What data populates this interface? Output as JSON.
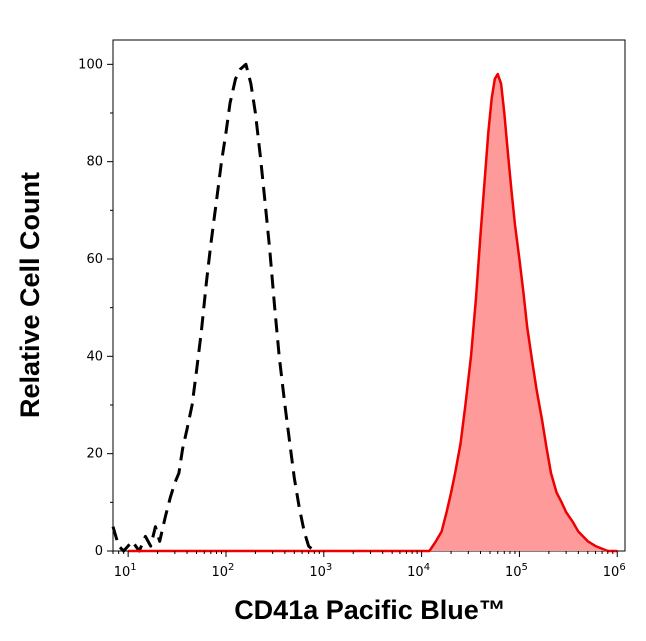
{
  "chart_data": {
    "type": "area",
    "xlabel": "CD41a Pacific Blue™",
    "ylabel": "Relative Cell Count",
    "x_scale": "log",
    "xlim": [
      7,
      1200000
    ],
    "ylim": [
      0,
      105
    ],
    "x_ticks": [
      {
        "value": 10,
        "base": "10",
        "exp": "1"
      },
      {
        "value": 100,
        "base": "10",
        "exp": "2"
      },
      {
        "value": 1000,
        "base": "10",
        "exp": "3"
      },
      {
        "value": 10000,
        "base": "10",
        "exp": "4"
      },
      {
        "value": 100000,
        "base": "10",
        "exp": "5"
      },
      {
        "value": 1000000,
        "base": "10",
        "exp": "6"
      }
    ],
    "y_ticks": [
      0,
      20,
      40,
      60,
      80,
      100
    ],
    "grid": false,
    "series": [
      {
        "style": "dashed",
        "color": "#000000",
        "points": [
          [
            7,
            5
          ],
          [
            8,
            1
          ],
          [
            9,
            0
          ],
          [
            11,
            2
          ],
          [
            13,
            0
          ],
          [
            15,
            3
          ],
          [
            17,
            1
          ],
          [
            19,
            5
          ],
          [
            21,
            2
          ],
          [
            24,
            7
          ],
          [
            27,
            11
          ],
          [
            30,
            14
          ],
          [
            33,
            16
          ],
          [
            36,
            21
          ],
          [
            40,
            25
          ],
          [
            45,
            30
          ],
          [
            50,
            37
          ],
          [
            56,
            45
          ],
          [
            63,
            55
          ],
          [
            70,
            63
          ],
          [
            80,
            72
          ],
          [
            90,
            80
          ],
          [
            100,
            86
          ],
          [
            110,
            92
          ],
          [
            125,
            97
          ],
          [
            140,
            99
          ],
          [
            160,
            100
          ],
          [
            180,
            96
          ],
          [
            200,
            90
          ],
          [
            225,
            81
          ],
          [
            250,
            72
          ],
          [
            280,
            62
          ],
          [
            315,
            50
          ],
          [
            350,
            40
          ],
          [
            400,
            30
          ],
          [
            450,
            22
          ],
          [
            500,
            15
          ],
          [
            560,
            9
          ],
          [
            630,
            4
          ],
          [
            700,
            1
          ],
          [
            800,
            0
          ]
        ]
      },
      {
        "style": "filled",
        "color": "#ee0000",
        "fill": "#ff9a9a",
        "points": [
          [
            10,
            0
          ],
          [
            12000,
            0
          ],
          [
            14000,
            2
          ],
          [
            16000,
            4
          ],
          [
            18000,
            8
          ],
          [
            20000,
            12
          ],
          [
            22000,
            16
          ],
          [
            25000,
            22
          ],
          [
            28000,
            30
          ],
          [
            32000,
            40
          ],
          [
            36000,
            52
          ],
          [
            40000,
            65
          ],
          [
            44000,
            76
          ],
          [
            48000,
            86
          ],
          [
            52000,
            93
          ],
          [
            56000,
            97
          ],
          [
            60000,
            98
          ],
          [
            65000,
            96
          ],
          [
            70000,
            90
          ],
          [
            76000,
            82
          ],
          [
            83000,
            74
          ],
          [
            90000,
            67
          ],
          [
            100000,
            60
          ],
          [
            110000,
            53
          ],
          [
            120000,
            46
          ],
          [
            135000,
            39
          ],
          [
            150000,
            33
          ],
          [
            170000,
            27
          ],
          [
            190000,
            21
          ],
          [
            210000,
            16
          ],
          [
            240000,
            12
          ],
          [
            270000,
            10
          ],
          [
            300000,
            8
          ],
          [
            350000,
            6
          ],
          [
            400000,
            4
          ],
          [
            500000,
            2
          ],
          [
            600000,
            1
          ],
          [
            800000,
            0
          ],
          [
            1000000,
            0
          ]
        ]
      }
    ]
  }
}
